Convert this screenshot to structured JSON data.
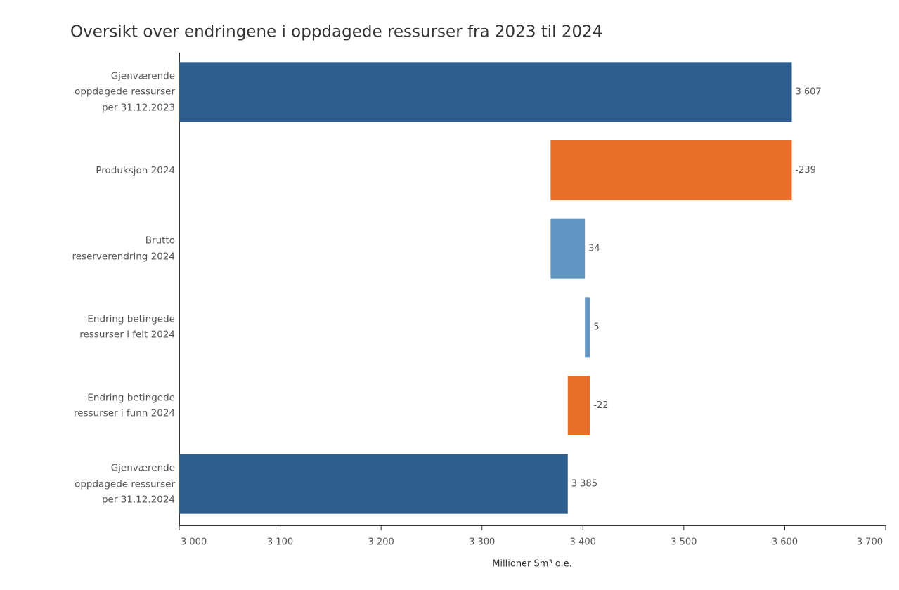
{
  "chart_data": {
    "type": "waterfall",
    "title": "Oversikt over endringene i oppdagede ressurser fra 2023 til 2024",
    "categories": [
      "Gjenværende\noppdagede ressurser\nper 31.12.2023",
      "Produksjon 2024",
      "Brutto\nreserverendring 2024",
      "Endring betingede\nressurser i felt 2024",
      "Endring betingede\nressurser i funn 2024",
      "Gjenværende\noppdagede ressurser\nper 31.12.2024"
    ],
    "values": [
      3607,
      -239,
      34,
      5,
      -22,
      3385
    ],
    "value_labels": [
      "3 607",
      "-239",
      "34",
      "5",
      "-22",
      "3 385"
    ],
    "measures": [
      "total",
      "relative",
      "relative",
      "relative",
      "relative",
      "total"
    ],
    "total_color": "#2e5e8e",
    "increase_color": "#6396c4",
    "decrease_color": "#e8702a",
    "x_label": "Millioner Sm³ o.e.",
    "xlim": [
      3000,
      3700
    ],
    "xticks": [
      {
        "value": 3000,
        "label": "3 000"
      },
      {
        "value": 3100,
        "label": "3 100"
      },
      {
        "value": 3200,
        "label": "3 200"
      },
      {
        "value": 3300,
        "label": "3 300"
      },
      {
        "value": 3400,
        "label": "3 400"
      },
      {
        "value": 3500,
        "label": "3 500"
      },
      {
        "value": 3600,
        "label": "3 600"
      },
      {
        "value": 3700,
        "label": "3 700"
      }
    ],
    "grid": false
  }
}
